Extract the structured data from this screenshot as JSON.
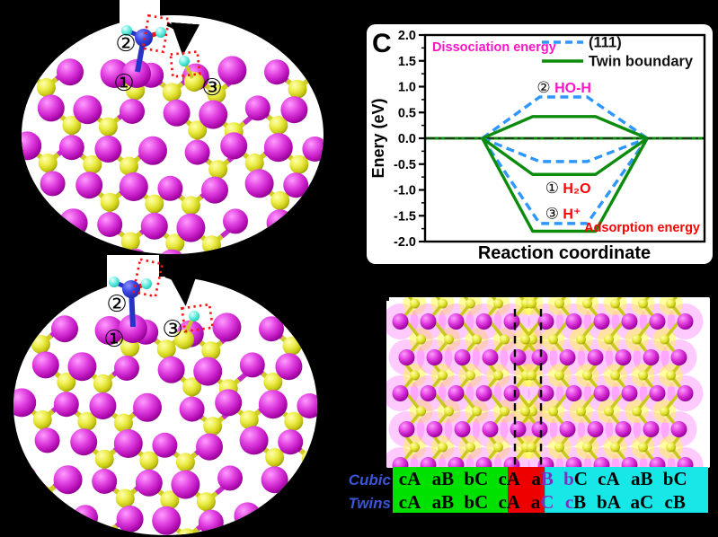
{
  "figure": {
    "background": "#000000",
    "panel_c_label": "C"
  },
  "panels": {
    "top_left": {
      "type": "molecular-model-111-surface",
      "markers": {
        "m1": "①",
        "m2": "②",
        "m3": "③"
      }
    },
    "bottom_left": {
      "type": "molecular-model-twin-boundary-surface",
      "markers": {
        "m1": "①",
        "m2": "②",
        "m3": "③"
      }
    }
  },
  "chart_data": {
    "type": "line",
    "panel_label": "C",
    "xlabel": "Reaction coordinate",
    "ylabel": "Enery (eV)",
    "ylim": [
      -2.0,
      2.0
    ],
    "yticks": [
      "2.0",
      "1.5",
      "1.0",
      "0.5",
      "0.0",
      "-0.5",
      "-1.0",
      "-1.5",
      "-2.0"
    ],
    "ytick_values": [
      2.0,
      1.5,
      1.0,
      0.5,
      0.0,
      -0.5,
      -1.0,
      -1.5,
      -2.0
    ],
    "grid": false,
    "legend_position": "top-right-inside",
    "legend": [
      {
        "name": "(111)",
        "color": "#2e96ff",
        "dashed": true
      },
      {
        "name": "Twin boundary",
        "color": "#0c8c0c",
        "dashed": false
      }
    ],
    "corner_labels": {
      "top_left": {
        "text": "Dissociation energy",
        "color": "#ff14c8"
      },
      "bottom_right": {
        "text": "Adsorption energy",
        "color": "#ff0000"
      }
    },
    "branch_x": [
      0.205,
      0.795
    ],
    "series": [
      {
        "name": "(111)",
        "color": "#2e96ff",
        "dashed": true,
        "plateau_x": [
          0.41,
          0.58
        ],
        "levels": [
          {
            "label": "HO-H",
            "value": 0.8
          },
          {
            "label": "H₂O",
            "value": -0.45
          },
          {
            "label": "H⁺",
            "value": -1.65
          }
        ]
      },
      {
        "name": "Twin boundary",
        "color": "#0c8c0c",
        "dashed": false,
        "plateau_x": [
          0.385,
          0.61
        ],
        "levels": [
          {
            "label": "HO-H",
            "value": 0.42
          },
          {
            "label": "H₂O",
            "value": -0.7
          },
          {
            "label": "H⁺",
            "value": -1.8
          }
        ]
      }
    ],
    "annotations": [
      {
        "marker": "②",
        "text": "HO-H",
        "color": "#ff14c8",
        "x": 0.4,
        "y": 0.97
      },
      {
        "marker": "①",
        "text": "H₂O",
        "color": "#ff0000",
        "x": 0.43,
        "y": -0.97
      },
      {
        "marker": "③",
        "text": "H⁺",
        "color": "#ff0000",
        "x": 0.43,
        "y": -1.47
      }
    ]
  },
  "stacking": {
    "row_labels": [
      "Cubic",
      "Twins"
    ],
    "rows": [
      {
        "label": "Cubic",
        "cells": [
          "cA",
          "aB",
          "bC",
          "cA",
          "aB",
          "bC",
          "cA",
          "aB",
          "bC"
        ],
        "purple_chars": [
          [
            4,
            1
          ],
          [
            5,
            0
          ]
        ]
      },
      {
        "label": "Twins",
        "cells": [
          "cA",
          "aB",
          "bC",
          "cA",
          "aC",
          "cB",
          "bA",
          "aC",
          "cB"
        ],
        "purple_chars": [
          [
            4,
            1
          ],
          [
            5,
            0
          ]
        ]
      }
    ],
    "segments": [
      {
        "color": "#00e100",
        "from": 0.0,
        "to": 0.365
      },
      {
        "color": "#ee0000",
        "from": 0.365,
        "to": 0.482
      },
      {
        "color": "#17e7e7",
        "from": 0.482,
        "to": 1.0
      }
    ],
    "palette": {
      "purple": "#7b2fc4",
      "black": "#000000",
      "label_blue": "#3c55d6"
    }
  },
  "colors": {
    "metal_sphere": "#cc22cc",
    "chalcogen_sphere": "#d8d81c",
    "hydrogen_sphere": "#49e8da",
    "adsorbate_center": "#2733c8",
    "highlight_box_red": "#ff1212",
    "curve_blue": "#2e96ff",
    "curve_green": "#0c8c0c"
  }
}
